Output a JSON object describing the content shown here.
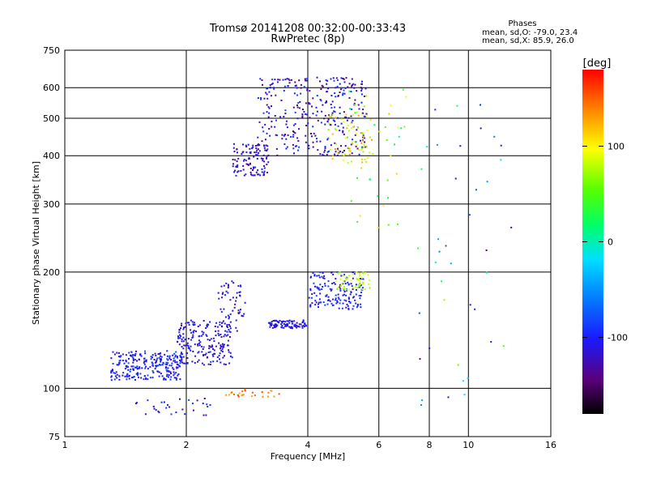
{
  "chart_data": {
    "type": "scatter",
    "title": "Tromsø 20141208 00:32:00-00:33:43",
    "subtitle": "RwPretec (8p)",
    "xlabel": "Frequency [MHz]",
    "ylabel": "Stationary phase Virtual Height [km]",
    "x_scale": "log",
    "y_scale": "log",
    "xlim": [
      1,
      16
    ],
    "ylim": [
      75,
      750
    ],
    "x_ticks": [
      "1",
      "2",
      "4",
      "6",
      "8",
      "10",
      "16"
    ],
    "y_ticks": [
      "75",
      "100",
      "200",
      "300",
      "400",
      "500",
      "600",
      "750"
    ],
    "grid": true,
    "stats": {
      "heading": "Phases",
      "line_o": "mean, sd,O: -79.0, 23.4",
      "line_x": "mean, sd,X:  85.9, 26.0"
    },
    "colorbar": {
      "label": "[deg]",
      "range": [
        -180,
        180
      ],
      "ticks": [
        "100",
        "0",
        "-100"
      ]
    },
    "clusters": [
      {
        "x": [
          1.3,
          1.95
        ],
        "y": [
          105,
          125
        ],
        "phase": -100,
        "spread": 25,
        "n": 260
      },
      {
        "x": [
          1.9,
          2.6
        ],
        "y": [
          115,
          150
        ],
        "phase": -110,
        "spread": 20,
        "n": 200
      },
      {
        "x": [
          2.4,
          2.8
        ],
        "y": [
          140,
          190
        ],
        "phase": -110,
        "spread": 20,
        "n": 60
      },
      {
        "x": [
          2.6,
          3.2
        ],
        "y": [
          355,
          430
        ],
        "phase": -115,
        "spread": 25,
        "n": 110
      },
      {
        "x": [
          3.0,
          5.6
        ],
        "y": [
          400,
          640
        ],
        "phase": -115,
        "spread": 35,
        "n": 330
      },
      {
        "x": [
          4.5,
          5.8
        ],
        "y": [
          380,
          520
        ],
        "phase": 100,
        "spread": 35,
        "n": 70
      },
      {
        "x": [
          3.2,
          4.0
        ],
        "y": [
          143,
          150
        ],
        "phase": -110,
        "spread": 15,
        "n": 90
      },
      {
        "x": [
          4.0,
          5.5
        ],
        "y": [
          160,
          200
        ],
        "phase": -100,
        "spread": 20,
        "n": 160
      },
      {
        "x": [
          4.7,
          5.7
        ],
        "y": [
          180,
          200
        ],
        "phase": 80,
        "spread": 15,
        "n": 50
      },
      {
        "x": [
          1.5,
          2.3
        ],
        "y": [
          85,
          95
        ],
        "phase": -110,
        "spread": 25,
        "n": 30
      },
      {
        "x": [
          2.5,
          3.4
        ],
        "y": [
          95,
          100
        ],
        "phase": 140,
        "spread": 20,
        "n": 25
      },
      {
        "x": [
          5.0,
          7.0
        ],
        "y": [
          250,
          600
        ],
        "phase": 60,
        "spread": 60,
        "n": 40
      },
      {
        "x": [
          7.5,
          13.0
        ],
        "y": [
          90,
          600
        ],
        "phase": -40,
        "spread": 120,
        "n": 40
      }
    ]
  }
}
